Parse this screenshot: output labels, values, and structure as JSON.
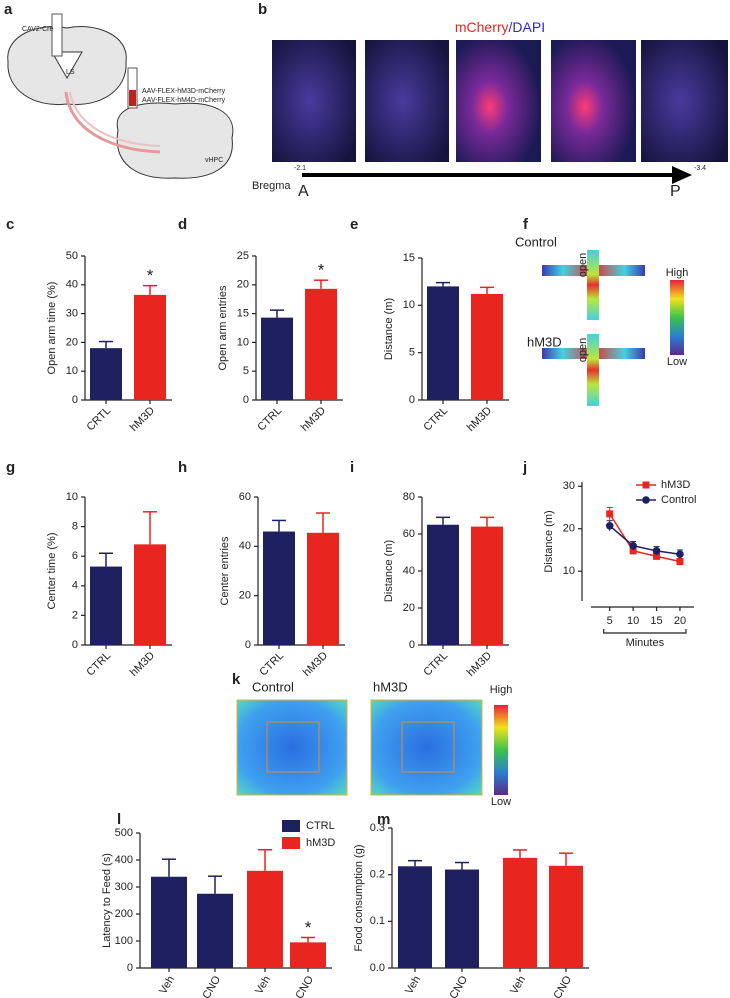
{
  "panel_labels": [
    "a",
    "b",
    "c",
    "d",
    "e",
    "f",
    "g",
    "h",
    "i",
    "j",
    "k",
    "l",
    "m"
  ],
  "diagram": {
    "injection_1": "CAV2-Cre",
    "region_1": "LS",
    "injection_2": "AAV-FLEX-hM3D-mCherry",
    "injection_3": "AAV-FLEX-hM4D-mCherry",
    "region_2": "vHPC"
  },
  "histology": {
    "title_red": "mCherry",
    "title_blue": "/DAPI",
    "axis_label": "Bregma",
    "start": "-2.1",
    "end": "-3.4",
    "anterior": "A",
    "posterior": "P"
  },
  "maze_heatmap": {
    "group_1": "Control",
    "group_2": "hM3D",
    "arm_1": "open",
    "arm_2": "open",
    "high": "High",
    "low": "Low"
  },
  "field_heatmap": {
    "group_1": "Control",
    "group_2": "hM3D",
    "high": "High",
    "low": "Low"
  },
  "chart_data": [
    {
      "type": "bar",
      "ylabel": "Open arm time (%)",
      "categories": [
        "CRTL",
        "hM3D"
      ],
      "values": [
        18,
        36.5
      ],
      "errors": [
        2.3,
        3.2
      ],
      "colors": [
        "#1f2060",
        "#e8251f"
      ],
      "ylim": [
        0,
        50
      ],
      "yticks": [
        0,
        10,
        20,
        30,
        40,
        50
      ],
      "annotation": "*"
    },
    {
      "type": "bar",
      "ylabel": "Open arm entries",
      "categories": [
        "CTRL",
        "hM3D"
      ],
      "values": [
        14.3,
        19.3
      ],
      "errors": [
        1.3,
        1.5
      ],
      "colors": [
        "#1f2060",
        "#e8251f"
      ],
      "ylim": [
        0,
        25
      ],
      "yticks": [
        0,
        5,
        10,
        15,
        20,
        25
      ],
      "annotation": "*"
    },
    {
      "type": "bar",
      "ylabel": "Distance (m)",
      "categories": [
        "CTRL",
        "hM3D"
      ],
      "values": [
        12.0,
        11.2
      ],
      "errors": [
        0.4,
        0.7
      ],
      "colors": [
        "#1f2060",
        "#e8251f"
      ],
      "ylim": [
        0,
        15
      ],
      "yticks": [
        0,
        5,
        10,
        15
      ]
    },
    {
      "type": "bar",
      "ylabel": "Center time (%)",
      "categories": [
        "CTRL",
        "hM3D"
      ],
      "values": [
        5.3,
        6.8
      ],
      "errors": [
        0.9,
        2.2
      ],
      "colors": [
        "#1f2060",
        "#e8251f"
      ],
      "ylim": [
        0,
        10
      ],
      "yticks": [
        0,
        2,
        4,
        6,
        8,
        10
      ]
    },
    {
      "type": "bar",
      "ylabel": "Center entries",
      "categories": [
        "CTRL",
        "hM3D"
      ],
      "values": [
        46,
        45.5
      ],
      "errors": [
        4.5,
        8
      ],
      "colors": [
        "#1f2060",
        "#e8251f"
      ],
      "ylim": [
        0,
        60
      ],
      "yticks": [
        0,
        20,
        40,
        60
      ]
    },
    {
      "type": "bar",
      "ylabel": "Distance (m)",
      "categories": [
        "CTRL",
        "hM3D"
      ],
      "values": [
        65,
        64
      ],
      "errors": [
        4,
        5
      ],
      "colors": [
        "#1f2060",
        "#e8251f"
      ],
      "ylim": [
        0,
        80
      ],
      "yticks": [
        0,
        20,
        40,
        60,
        80
      ]
    },
    {
      "type": "line",
      "ylabel": "Distance (m)",
      "xlabel": "Minutes",
      "x": [
        5,
        10,
        15,
        20
      ],
      "xlim": [
        1,
        23
      ],
      "xticks": [
        5,
        10,
        15,
        20
      ],
      "ylim": [
        3,
        31
      ],
      "yticks": [
        10,
        20,
        30
      ],
      "series": [
        {
          "name": "hM3D",
          "color": "#e8251f",
          "values": [
            23.5,
            14.8,
            13.5,
            12.3
          ],
          "errors": [
            1.5,
            0.7,
            0.6,
            0.6
          ]
        },
        {
          "name": "Control",
          "color": "#1f2060",
          "values": [
            20.7,
            16,
            14.8,
            14
          ],
          "errors": [
            1.2,
            1,
            1,
            1
          ]
        }
      ]
    },
    {
      "type": "bar",
      "ylabel": "Latency to Feed (s)",
      "categories": [
        "Veh",
        "CNO",
        "Veh",
        "CNO"
      ],
      "values": [
        338,
        275,
        360,
        95
      ],
      "errors": [
        65,
        65,
        78,
        18
      ],
      "colors": [
        "#1f2060",
        "#1f2060",
        "#e8251f",
        "#e8251f"
      ],
      "ylim": [
        0,
        500
      ],
      "yticks": [
        0,
        100,
        200,
        300,
        400,
        500
      ],
      "annotation": "*",
      "legend": [
        {
          "name": "CTRL",
          "color": "#1f2060"
        },
        {
          "name": "hM3D",
          "color": "#e8251f"
        }
      ]
    },
    {
      "type": "bar",
      "ylabel": "Food consumption (g)",
      "categories": [
        "Veh",
        "CNO",
        "Veh",
        "CNO"
      ],
      "values": [
        0.218,
        0.211,
        0.236,
        0.219
      ],
      "errors": [
        0.012,
        0.015,
        0.017,
        0.027
      ],
      "colors": [
        "#1f2060",
        "#1f2060",
        "#e8251f",
        "#e8251f"
      ],
      "ylim": [
        0,
        0.3
      ],
      "yticks": [
        {
          "value": 0,
          "label": "0.0"
        },
        0.1,
        0.2,
        0.3
      ]
    }
  ]
}
